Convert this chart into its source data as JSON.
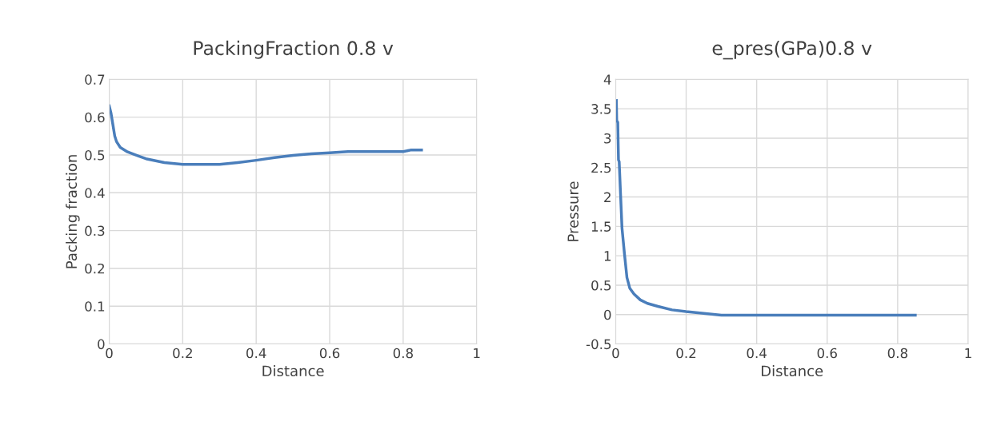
{
  "chart_data": [
    {
      "type": "line",
      "title": "PackingFraction 0.8 v",
      "xlabel": "Distance",
      "ylabel": "Packing fraction",
      "series": [
        {
          "color": "#4a7ebb",
          "x": [
            0,
            0.005,
            0.01,
            0.015,
            0.02,
            0.03,
            0.05,
            0.08,
            0.1,
            0.15,
            0.2,
            0.25,
            0.3,
            0.35,
            0.4,
            0.45,
            0.5,
            0.55,
            0.6,
            0.65,
            0.7,
            0.75,
            0.8,
            0.82,
            0.85
          ],
          "values": [
            0.63,
            0.61,
            0.58,
            0.55,
            0.535,
            0.52,
            0.508,
            0.497,
            0.49,
            0.48,
            0.475,
            0.475,
            0.475,
            0.48,
            0.486,
            0.493,
            0.499,
            0.503,
            0.506,
            0.509,
            0.509,
            0.509,
            0.509,
            0.513,
            0.513
          ]
        }
      ],
      "xlim": [
        0,
        1
      ],
      "xticks": [
        0,
        0.2,
        0.4,
        0.6,
        0.8,
        1
      ],
      "ylim": [
        0,
        0.7
      ],
      "yticks": [
        0,
        0.1,
        0.2,
        0.3,
        0.4,
        0.5,
        0.6,
        0.7
      ],
      "grid": true,
      "legend": false
    },
    {
      "type": "line",
      "title": "e_pres(GPa)0.8 v",
      "xlabel": "Distance",
      "ylabel": "Pressure",
      "series": [
        {
          "color": "#4a7ebb",
          "x": [
            0.002,
            0.003,
            0.006,
            0.008,
            0.01,
            0.014,
            0.018,
            0.025,
            0.032,
            0.04,
            0.052,
            0.07,
            0.09,
            0.12,
            0.16,
            0.2,
            0.25,
            0.3,
            0.4,
            0.5,
            0.6,
            0.7,
            0.85
          ],
          "values": [
            3.64,
            3.3,
            3.27,
            2.63,
            2.6,
            2.03,
            1.47,
            1.03,
            0.63,
            0.45,
            0.35,
            0.25,
            0.19,
            0.14,
            0.08,
            0.05,
            0.02,
            -0.01,
            -0.01,
            -0.01,
            -0.01,
            -0.01,
            -0.01
          ]
        }
      ],
      "xlim": [
        0,
        1
      ],
      "xticks": [
        0,
        0.2,
        0.4,
        0.6,
        0.8,
        1
      ],
      "ylim": [
        -0.5,
        4
      ],
      "yticks": [
        -0.5,
        0,
        0.5,
        1,
        1.5,
        2,
        2.5,
        3,
        3.5,
        4
      ],
      "grid": true,
      "legend": false
    }
  ]
}
